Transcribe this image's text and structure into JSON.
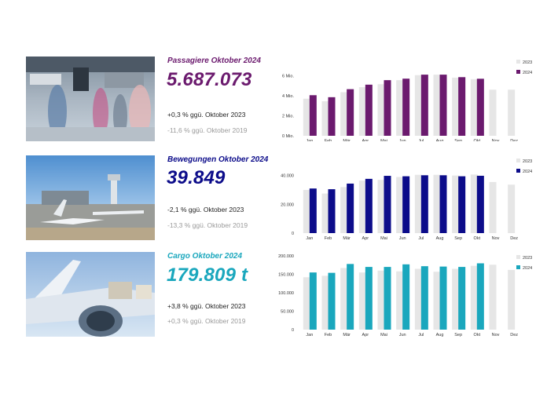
{
  "months": [
    "Jan",
    "Feb",
    "Mär",
    "Apr",
    "Mai",
    "Jun",
    "Jul",
    "Aug",
    "Sep",
    "Okt",
    "Nov",
    "Dez"
  ],
  "colors": {
    "prev_year": "#e6e6e6",
    "passengers": "#6b1a6e",
    "movements": "#0c0c8a",
    "cargo": "#1aa7bd"
  },
  "passengers": {
    "title": "Passagiere Oktober 2024",
    "value": "5.687.073",
    "change_prev_year": "+0,3 % ggü. Oktober 2023",
    "change_2019": "-11,6 % ggü. Oktober 2019",
    "image_icon": "airport-terminal-photo"
  },
  "movements": {
    "title": "Bewegungen Oktober 2024",
    "value": "39.849",
    "change_prev_year": "-2,1 % ggü. Oktober 2023",
    "change_2019": "-13,3 % ggü. Oktober 2019",
    "image_icon": "airport-apron-photo"
  },
  "cargo": {
    "title": "Cargo Oktober 2024",
    "value": "179.809 t",
    "change_prev_year": "+3,8 % ggü. Oktober 2023",
    "change_2019": "+0,3 % ggü. Oktober 2019",
    "image_icon": "cargo-plane-photo"
  },
  "chart_data": [
    {
      "type": "bar",
      "categories": [
        "Jan",
        "Feb",
        "Mär",
        "Apr",
        "Mai",
        "Jun",
        "Jul",
        "Aug",
        "Sep",
        "Okt",
        "Nov",
        "Dez"
      ],
      "y_ticks": [
        "0 Mio.",
        "2 Mio.",
        "4 Mio.",
        "6 Mio."
      ],
      "ylim": [
        0,
        6500000
      ],
      "series": [
        {
          "name": "2023",
          "values": [
            3700000,
            3450000,
            4350000,
            4850000,
            5150000,
            5550000,
            6050000,
            6100000,
            5800000,
            5650000,
            4600000,
            4600000
          ]
        },
        {
          "name": "2024",
          "values": [
            4050000,
            3850000,
            4650000,
            5100000,
            5550000,
            5700000,
            6100000,
            6100000,
            5850000,
            5690000,
            null,
            null
          ]
        }
      ],
      "legend_position": "top-right"
    },
    {
      "type": "bar",
      "categories": [
        "Jan",
        "Feb",
        "Mär",
        "Apr",
        "Mai",
        "Jun",
        "Jul",
        "Aug",
        "Sep",
        "Okt",
        "Nov",
        "Dez"
      ],
      "y_ticks": [
        "0",
        "20.000",
        "40.000"
      ],
      "ylim": [
        0,
        42000
      ],
      "series": [
        {
          "name": "2023",
          "values": [
            30000,
            27500,
            32000,
            36500,
            37000,
            39000,
            40500,
            40500,
            40000,
            40700,
            35500,
            33700
          ]
        },
        {
          "name": "2024",
          "values": [
            31000,
            30500,
            34400,
            37700,
            39800,
            39500,
            40200,
            40200,
            39500,
            39849,
            null,
            null
          ]
        }
      ],
      "legend_position": "top-right"
    },
    {
      "type": "bar",
      "categories": [
        "Jan",
        "Feb",
        "Mär",
        "Apr",
        "Mai",
        "Jun",
        "Jul",
        "Aug",
        "Sep",
        "Okt",
        "Nov",
        "Dez"
      ],
      "y_ticks": [
        "0",
        "50.000",
        "100.000",
        "150.000",
        "200.000"
      ],
      "ylim": [
        0,
        200000
      ],
      "series": [
        {
          "name": "2023",
          "values": [
            142000,
            146000,
            167000,
            155000,
            160000,
            158000,
            165000,
            157000,
            165000,
            173000,
            176000,
            162000
          ]
        },
        {
          "name": "2024",
          "values": [
            155000,
            154000,
            178000,
            170000,
            170000,
            177000,
            172000,
            171000,
            170000,
            179809,
            null,
            null
          ]
        }
      ],
      "legend_position": "top-right"
    }
  ]
}
